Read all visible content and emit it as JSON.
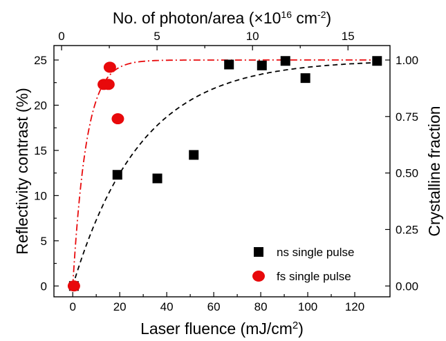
{
  "chart_data": {
    "type": "scatter",
    "xlabel_base": "Laser fluence (mJ/cm",
    "xlabel_sup": "2",
    "xlabel_tail": ")",
    "ylabel": "Reflectivity contrast (%)",
    "top_label_base": "No. of photon/area (×10",
    "top_label_sup1": "16",
    "top_label_mid": " cm",
    "top_label_sup2": "-2",
    "top_label_tail": ")",
    "right_label": "Crystalline fraction",
    "xlim": [
      -8,
      135
    ],
    "ylim": [
      -1.2,
      26.6
    ],
    "xticks": [
      "0",
      "20",
      "40",
      "60",
      "80",
      "100",
      "120"
    ],
    "yticks": [
      "0",
      "5",
      "10",
      "15",
      "20",
      "25"
    ],
    "top_xlim": [
      -0.4,
      17.2
    ],
    "top_ticks": [
      "0",
      "5",
      "10",
      "15"
    ],
    "right_ticks": [
      "0.00",
      "0.25",
      "0.50",
      "0.75",
      "1.00"
    ],
    "legend_position": "bottom-right",
    "series": [
      {
        "name": "ns single pulse",
        "marker": "square",
        "color": "#000000",
        "points": [
          [
            0.5,
            0
          ],
          [
            19,
            12.3
          ],
          [
            36,
            11.9
          ],
          [
            51.5,
            14.5
          ],
          [
            66.5,
            24.5
          ],
          [
            80.5,
            24.4
          ],
          [
            90.5,
            24.9
          ],
          [
            99,
            23
          ],
          [
            129.5,
            24.9
          ]
        ]
      },
      {
        "name": "fs single pulse",
        "marker": "circle",
        "color": "#e8090b",
        "points": [
          [
            0.5,
            0
          ],
          [
            13.2,
            22.3
          ],
          [
            15.2,
            22.3
          ],
          [
            15.8,
            24.2
          ],
          [
            19.2,
            18.5
          ]
        ]
      }
    ],
    "fits": [
      {
        "style": "dash",
        "color": "#000000",
        "scale": 25,
        "tau": 29
      },
      {
        "style": "dashdot",
        "color": "#e8090b",
        "scale": 25,
        "tau": 5.8
      }
    ]
  }
}
